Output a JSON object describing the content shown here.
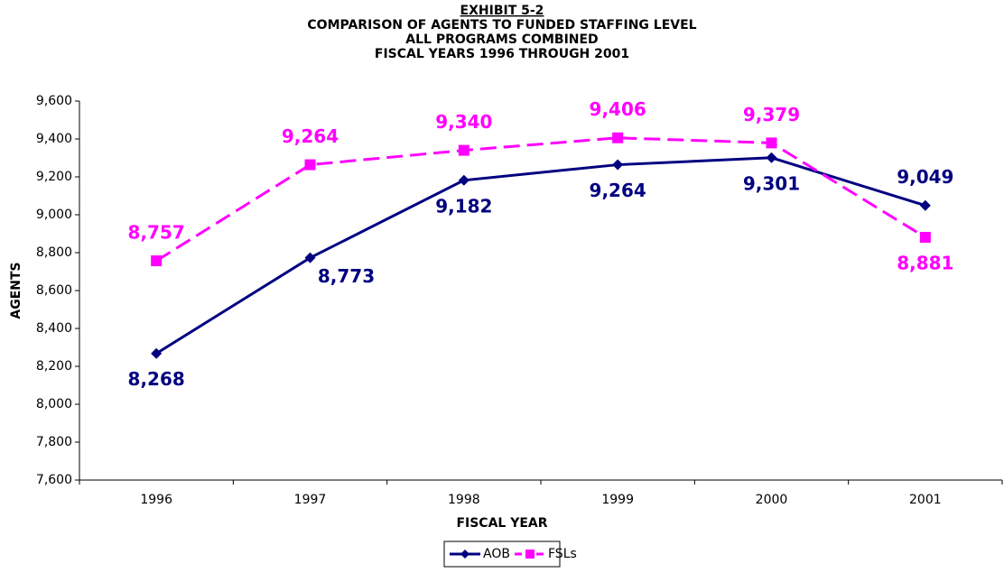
{
  "chart_data": {
    "type": "line",
    "title": "EXHIBIT 5-2",
    "subtitle": [
      "COMPARISON OF AGENTS TO FUNDED STAFFING LEVEL",
      "ALL PROGRAMS COMBINED",
      "FISCAL YEARS 1996 THROUGH 2001"
    ],
    "x_label": "FISCAL YEAR",
    "y_label": "AGENTS",
    "categories": [
      "1996",
      "1997",
      "1998",
      "1999",
      "2000",
      "2001"
    ],
    "series": [
      {
        "name": "AOB",
        "color": "#000080",
        "marker": "diamond",
        "dashed": false,
        "values": [
          8268,
          8773,
          9182,
          9264,
          9301,
          9049
        ],
        "value_labels": [
          "8,268",
          "8,773",
          "9,182",
          "9,264",
          "9,301",
          "9,049"
        ]
      },
      {
        "name": "FSLs",
        "color": "#ff00ff",
        "marker": "square",
        "dashed": true,
        "values": [
          8757,
          9264,
          9340,
          9406,
          9379,
          8881
        ],
        "value_labels": [
          "8,757",
          "9,264",
          "9,340",
          "9,406",
          "9,379",
          "8,881"
        ]
      }
    ],
    "ylim": [
      7600,
      9600
    ],
    "yticks": [
      {
        "value": 7600,
        "label": "7,600"
      },
      {
        "value": 7800,
        "label": "7,800"
      },
      {
        "value": 8000,
        "label": "8,000"
      },
      {
        "value": 8200,
        "label": "8,200"
      },
      {
        "value": 8400,
        "label": "8,400"
      },
      {
        "value": 8600,
        "label": "8,600"
      },
      {
        "value": 8800,
        "label": "8,800"
      },
      {
        "value": 9000,
        "label": "9,000"
      },
      {
        "value": 9200,
        "label": "9,200"
      },
      {
        "value": 9400,
        "label": "9,400"
      },
      {
        "value": 9600,
        "label": "9,600"
      }
    ],
    "legend": "bottom"
  }
}
